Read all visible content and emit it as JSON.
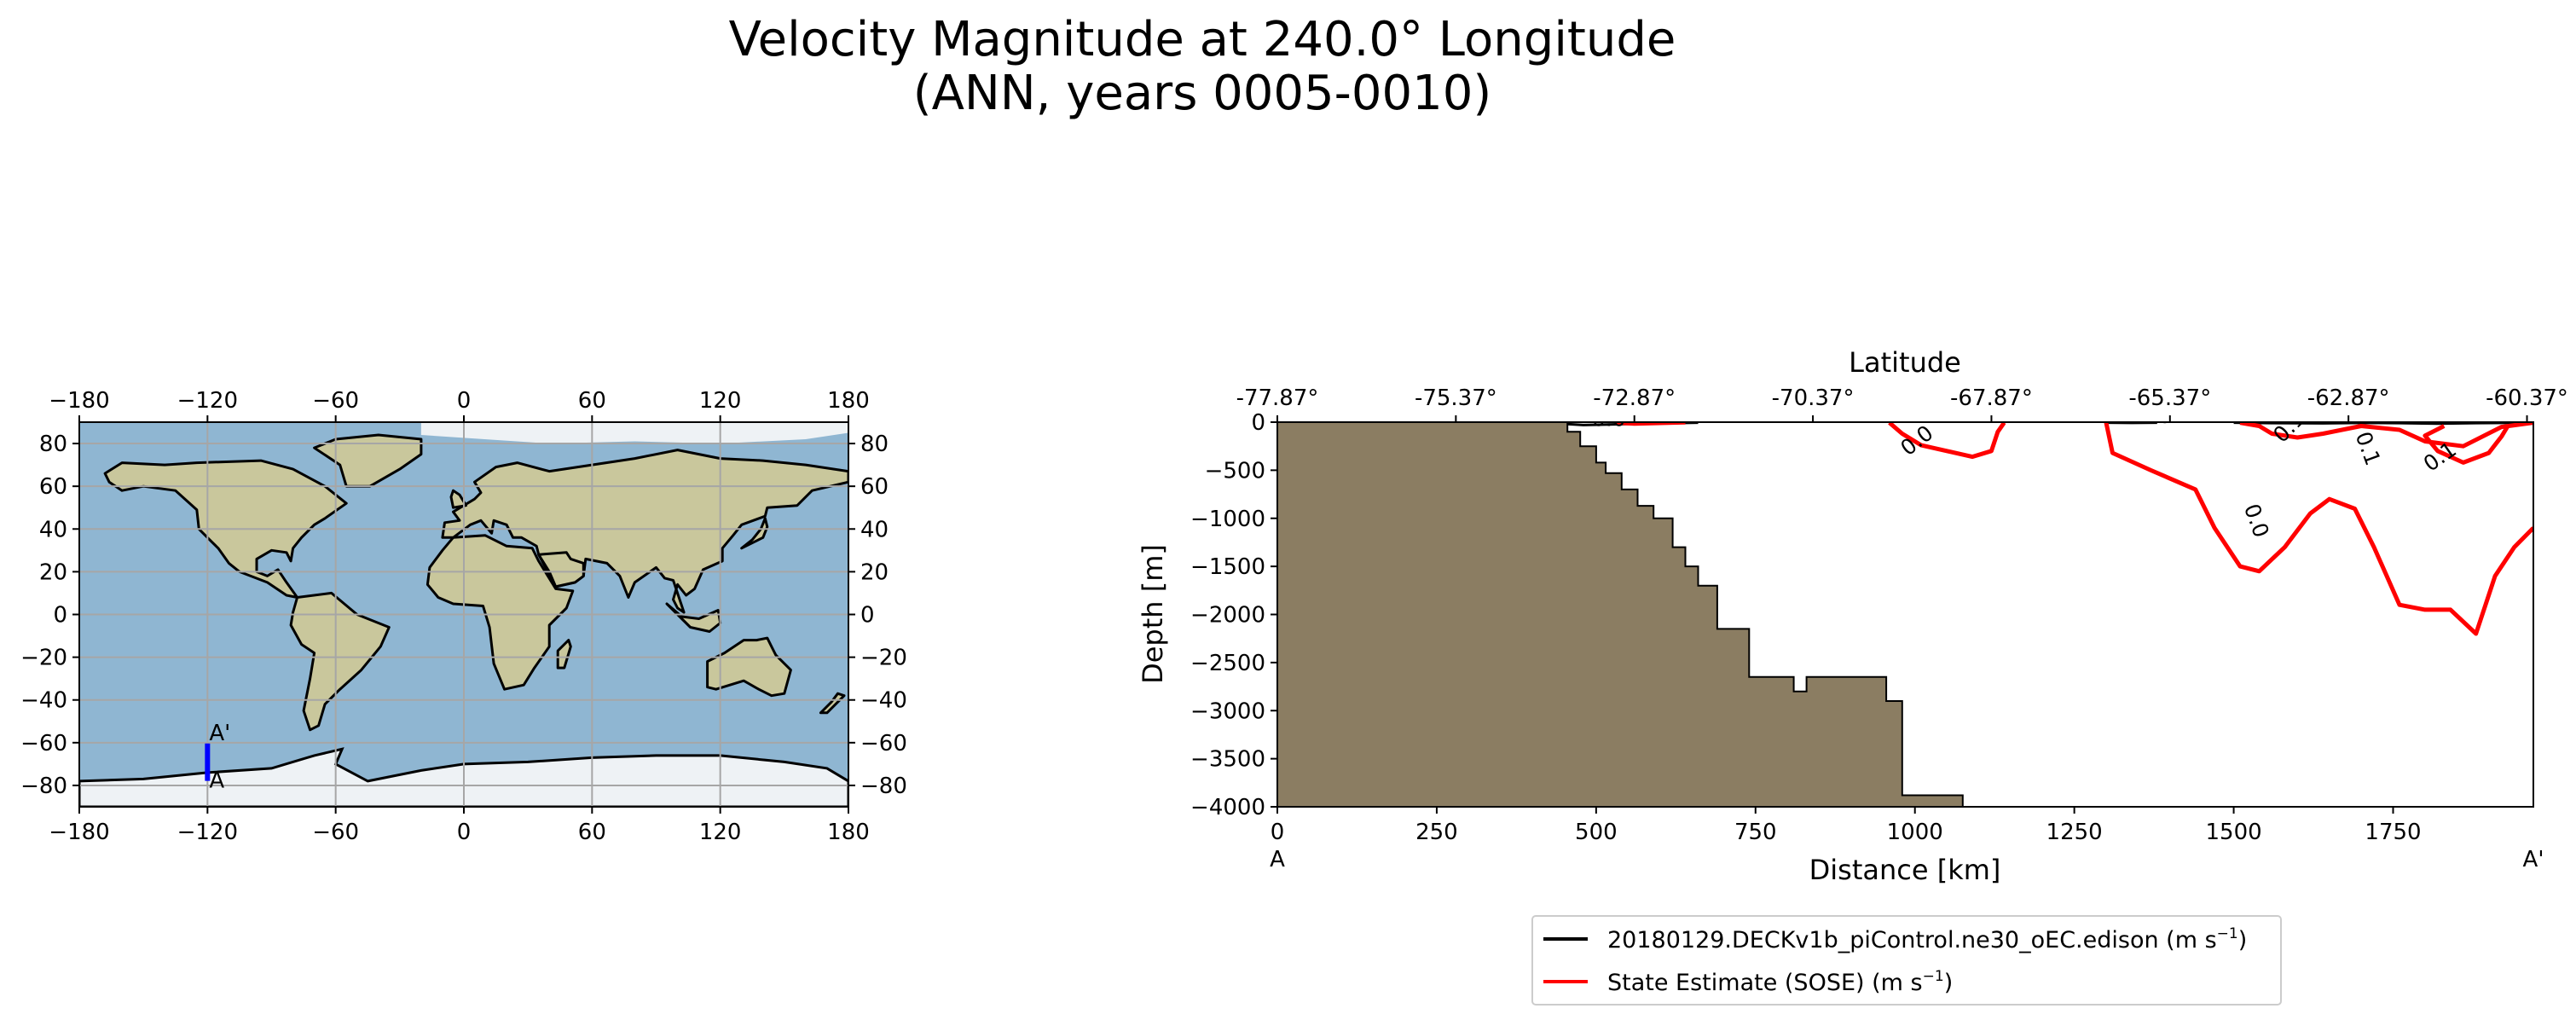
{
  "title": {
    "line1": "Velocity Magnitude at 240.0° Longitude",
    "line2": "(ANN, years 0005-0010)"
  },
  "colors": {
    "ocean": "#8fb6d2",
    "land": "#c9c79c",
    "ice": "#eef2f5",
    "seafloor": "#8b7d62",
    "model": "#000000",
    "obs": "#ff0000",
    "transect": "#0000ff"
  },
  "chart_data": [
    {
      "type": "map",
      "projection": "PlateCarree",
      "lon_ticks": [
        -180,
        -120,
        -60,
        0,
        60,
        120,
        180
      ],
      "lat_ticks": [
        80,
        60,
        40,
        20,
        0,
        -20,
        -40,
        -60,
        -80
      ],
      "lon_tick_labels": [
        "−180",
        "−120",
        "−60",
        "0",
        "60",
        "120",
        "180"
      ],
      "lat_tick_labels": [
        "80",
        "60",
        "40",
        "20",
        "0",
        "−20",
        "−40",
        "−60",
        "−80"
      ],
      "xlim": [
        -180,
        180
      ],
      "ylim": [
        -90,
        90
      ],
      "grid": true,
      "transect": {
        "lon": -120,
        "lat_start": -77.87,
        "lat_end": -60.37,
        "start_label": "A",
        "end_label": "A'"
      }
    },
    {
      "type": "line",
      "subtype": "contour-transect",
      "xlabel": "Distance [km]",
      "ylabel": "Depth [m]",
      "top_axis_label": "Latitude",
      "xlim": [
        0,
        1970
      ],
      "ylim": [
        -4000,
        0
      ],
      "x_ticks": [
        0,
        250,
        500,
        750,
        1000,
        1250,
        1500,
        1750
      ],
      "x_tick_labels": [
        "0",
        "250",
        "500",
        "750",
        "1000",
        "1250",
        "1500",
        "1750"
      ],
      "y_ticks": [
        0,
        -500,
        -1000,
        -1500,
        -2000,
        -2500,
        -3000,
        -3500,
        -4000
      ],
      "y_tick_labels": [
        "0",
        "−500",
        "−1000",
        "−1500",
        "−2000",
        "−2500",
        "−3000",
        "−3500",
        "−4000"
      ],
      "top_ticks": [
        0,
        280,
        560,
        840,
        1120,
        1400,
        1680,
        1960
      ],
      "top_tick_labels": [
        "-77.87°",
        "-75.37°",
        "-72.87°",
        "-70.37°",
        "-67.87°",
        "-65.37°",
        "-62.87°",
        "-60.37°"
      ],
      "start_label": "A",
      "end_label": "A'",
      "seafloor": {
        "x": [
          0,
          455,
          455,
          475,
          475,
          500,
          500,
          515,
          515,
          540,
          540,
          565,
          565,
          590,
          590,
          620,
          620,
          640,
          640,
          660,
          660,
          690,
          690,
          740,
          740,
          810,
          810,
          830,
          830,
          955,
          955,
          980,
          980,
          1075,
          1075
        ],
        "depth": [
          0,
          0,
          -100,
          -100,
          -250,
          -250,
          -420,
          -420,
          -530,
          -530,
          -700,
          -700,
          -870,
          -870,
          -1000,
          -1000,
          -1300,
          -1300,
          -1500,
          -1500,
          -1700,
          -1700,
          -2150,
          -2150,
          -2650,
          -2650,
          -2800,
          -2800,
          -2650,
          -2650,
          -2900,
          -2900,
          -3880,
          -3880,
          -4000
        ]
      },
      "series": [
        {
          "name": "20180129.DECKv1b_piControl.ne30_oEC.edison (m s$^{-1}$)",
          "legend_label": "20180129.DECKv1b_piControl.ne30_oEC.edison (m s",
          "contours": [
            {
              "level": "0.0",
              "x": [
                455,
                480,
                520,
                570,
                620,
                660
              ],
              "depth": [
                -20,
                -30,
                -25,
                -15,
                -10,
                -5
              ]
            },
            {
              "level": "0.0",
              "x": [
                1300,
                1340,
                1380
              ],
              "depth": [
                -5,
                -8,
                -5
              ]
            },
            {
              "level": "0.1",
              "x": [
                1500,
                1560,
                1640,
                1700,
                1760,
                1820,
                1880,
                1960
              ],
              "depth": [
                -5,
                -10,
                -12,
                -8,
                -10,
                -15,
                -10,
                -5
              ]
            }
          ]
        },
        {
          "name": "State Estimate (SOSE) (m s$^{-1}$)",
          "legend_label": "State Estimate (SOSE) (m s",
          "contours": [
            {
              "level": "0.0",
              "x": [
                530,
                560,
                620,
                640
              ],
              "depth": [
                -5,
                -15,
                -5,
                -3
              ]
            },
            {
              "level": "0.0",
              "x": [
                960,
                980,
                1010,
                1050,
                1090,
                1120,
                1130,
                1140
              ],
              "depth": [
                -5,
                -120,
                -240,
                -300,
                -360,
                -300,
                -100,
                -5
              ]
            },
            {
              "level": "0.0",
              "x": [
                1300,
                1310,
                1370,
                1440,
                1470,
                1510,
                1540,
                1580,
                1620,
                1650,
                1690,
                1720,
                1760,
                1800,
                1840,
                1880,
                1910,
                1940,
                1970
              ],
              "depth": [
                -5,
                -320,
                -500,
                -700,
                -1100,
                -1500,
                -1550,
                -1300,
                -950,
                -800,
                -900,
                -1300,
                -1900,
                -1950,
                -1950,
                -2200,
                -1600,
                -1300,
                -1100
              ]
            },
            {
              "level": "0.0",
              "x": [
                1510,
                1540,
                1560,
                1600,
                1640,
                1700,
                1760,
                1800,
                1860,
                1920,
                1970
              ],
              "depth": [
                -5,
                -40,
                -120,
                -160,
                -120,
                -40,
                -80,
                -200,
                -250,
                -50,
                -5
              ]
            },
            {
              "level": "0.1",
              "x": [
                1830,
                1800,
                1820,
                1860,
                1900,
                1920,
                1930
              ],
              "depth": [
                -40,
                -140,
                -300,
                -420,
                -320,
                -150,
                -40
              ]
            }
          ]
        }
      ],
      "contour_labels": [
        {
          "text": "0.0",
          "x": 520,
          "depth": -40,
          "rotate": 0
        },
        {
          "text": "-0.0",
          "x": 1370,
          "depth": -10,
          "rotate": 0
        },
        {
          "text": "0.0",
          "x": 1010,
          "depth": -250,
          "rotate": -38
        },
        {
          "text": "0.0",
          "x": 1525,
          "depth": -1050,
          "rotate": 70
        },
        {
          "text": "0.1",
          "x": 1595,
          "depth": -100,
          "rotate": -45
        },
        {
          "text": "0.1",
          "x": 1700,
          "depth": -300,
          "rotate": 70
        },
        {
          "text": "0.1",
          "x": 1830,
          "depth": -420,
          "rotate": -35
        },
        {
          "text": "0.1",
          "x": 1888,
          "depth": -10,
          "rotate": 0
        }
      ]
    }
  ]
}
